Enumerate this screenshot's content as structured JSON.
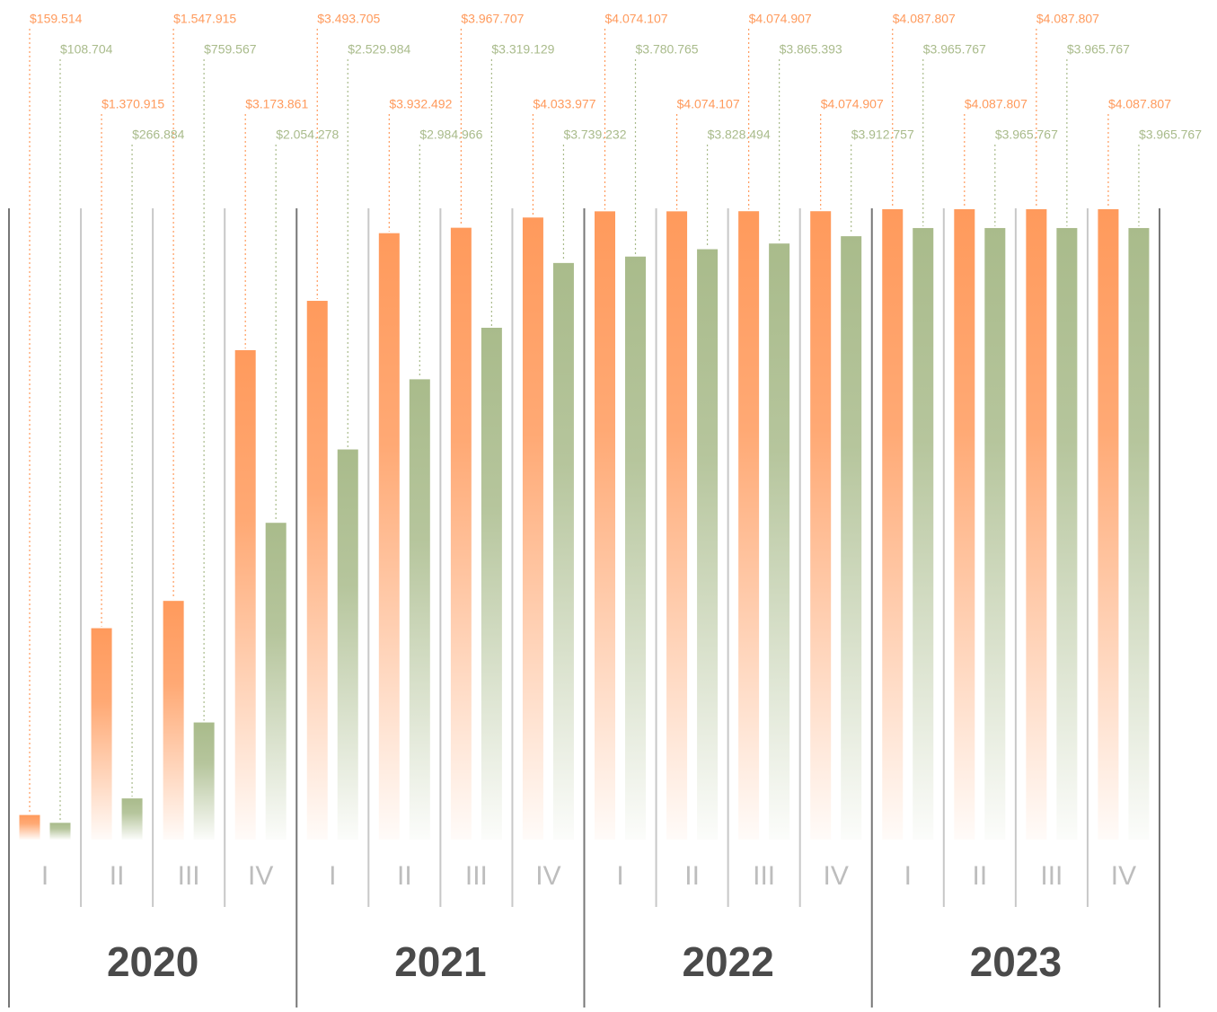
{
  "chart_data": {
    "type": "bar",
    "groups": [
      "2020",
      "2021",
      "2022",
      "2023"
    ],
    "categories": [
      "I",
      "II",
      "III",
      "IV",
      "I",
      "II",
      "III",
      "IV",
      "I",
      "II",
      "III",
      "IV",
      "I",
      "II",
      "III",
      "IV"
    ],
    "series": [
      {
        "color": "#ff9a5c",
        "values": [
          159514,
          1370915,
          1547915,
          3173861,
          3493705,
          3932492,
          3967707,
          4033977,
          4074107,
          4074107,
          4074907,
          4074907,
          4087807,
          4087807,
          4087807,
          4087807
        ],
        "value_labels": [
          "$159.514",
          "$1.370.915",
          "$1.547.915",
          "$3.173.861",
          "$3.493.705",
          "$3.932.492",
          "$3.967.707",
          "$4.033.977",
          "$4.074.107",
          "$4.074.107",
          "$4.074.907",
          "$4.074.907",
          "$4.087.807",
          "$4.087.807",
          "$4.087.807",
          "$4.087.807"
        ]
      },
      {
        "color": "#a9bb8b",
        "values": [
          108704,
          266884,
          759567,
          2054278,
          2529984,
          2984966,
          3319129,
          3739232,
          3780765,
          3828494,
          3865393,
          3912757,
          3965767,
          3965767,
          3965767,
          3965767
        ],
        "value_labels": [
          "$108.704",
          "$266.884",
          "$759.567",
          "$2.054.278",
          "$2.529.984",
          "$2.984.966",
          "$3.319.129",
          "$3.739.232",
          "$3.780.765",
          "$3.828.494",
          "$3.865.393",
          "$3.912.757",
          "$3.965.767",
          "$3.965.767",
          "$3.965.767",
          "$3.965.767"
        ]
      }
    ]
  }
}
